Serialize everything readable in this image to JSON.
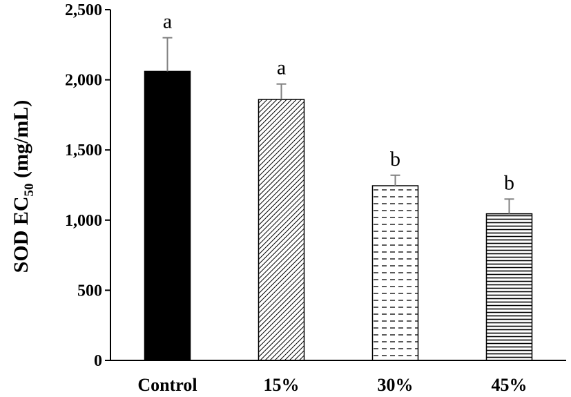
{
  "chart_data": {
    "type": "bar",
    "title": "",
    "xlabel": "",
    "ylabel": {
      "prefix": "SOD EC",
      "subscript": "50",
      "suffix": " (mg/mL)"
    },
    "ylim": [
      0,
      2500
    ],
    "yticks": [
      {
        "value": 0,
        "label": "0"
      },
      {
        "value": 500,
        "label": "500"
      },
      {
        "value": 1000,
        "label": "1,000"
      },
      {
        "value": 1500,
        "label": "1,500"
      },
      {
        "value": 2000,
        "label": "2,000"
      },
      {
        "value": 2500,
        "label": "2,500"
      }
    ],
    "grid": false,
    "legend": "none",
    "categories": [
      "Control",
      "15%",
      "30%",
      "45%"
    ],
    "values": [
      2060,
      1860,
      1245,
      1045
    ],
    "error_upper": [
      240,
      110,
      75,
      105
    ],
    "significance": [
      "a",
      "a",
      "b",
      "b"
    ],
    "fills": [
      "solid-black",
      "diagonal-hatch",
      "dashed-horizontal",
      "horizontal-lines"
    ]
  },
  "colors": {
    "axis": "#000000",
    "bar_outline": "#000000",
    "error_bar": "#808080",
    "background": "#ffffff"
  }
}
